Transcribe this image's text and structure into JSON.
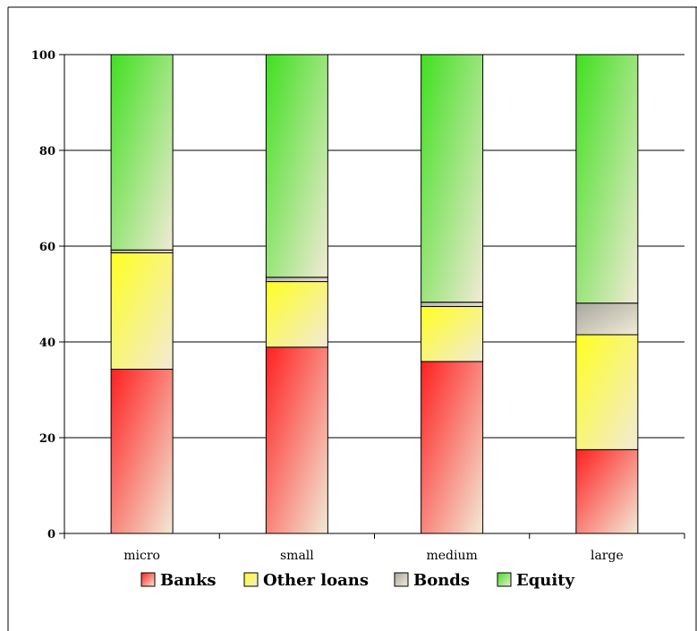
{
  "chart_data": {
    "type": "bar",
    "stacked": true,
    "categories": [
      "micro",
      "small",
      "medium",
      "large"
    ],
    "series": [
      {
        "name": "Banks",
        "values": [
          34.3,
          38.9,
          35.9,
          17.5
        ],
        "color": "#ff2020"
      },
      {
        "name": "Other loans",
        "values": [
          24.3,
          13.7,
          11.5,
          24.0
        ],
        "color": "#ffff20"
      },
      {
        "name": "Bonds",
        "values": [
          0.6,
          0.9,
          0.9,
          6.6
        ],
        "color": "#a8a8a0"
      },
      {
        "name": "Equity",
        "values": [
          40.8,
          46.5,
          51.7,
          51.9
        ],
        "color": "#40e020"
      }
    ],
    "ylim": [
      0,
      100
    ],
    "yticks": [
      0,
      20,
      40,
      60,
      80,
      100
    ],
    "grid": true,
    "legend_position": "bottom",
    "title": "",
    "xlabel": "",
    "ylabel": ""
  }
}
